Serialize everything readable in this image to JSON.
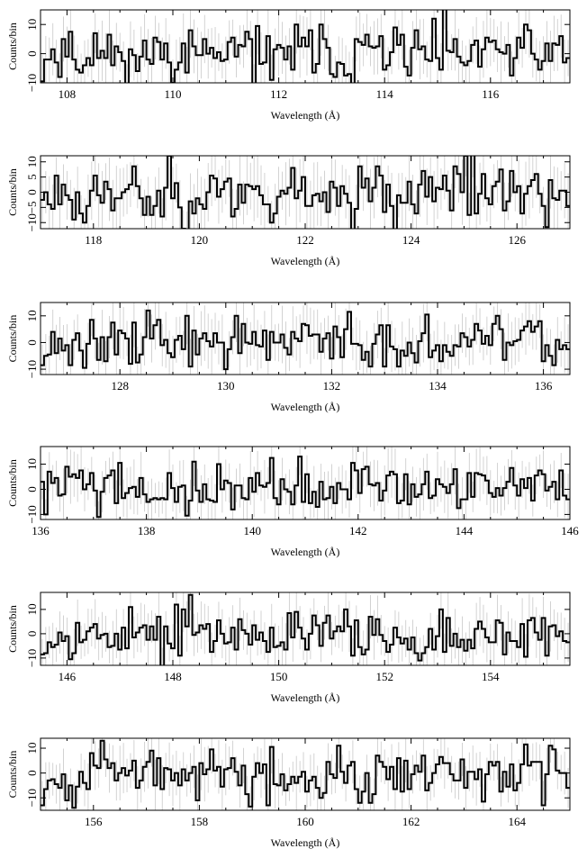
{
  "colors": {
    "spectrum": "#000000",
    "error_bars": "#c8c8c8",
    "axes": "#000000",
    "background": "#ffffff"
  },
  "chart_data": [
    {
      "type": "line",
      "style": "histogram-step",
      "xlabel": "Wavelength (Å)",
      "ylabel": "Counts/bin",
      "xlim": [
        107.5,
        117.5
      ],
      "ylim": [
        -10,
        15
      ],
      "xticks": [
        108,
        110,
        112,
        114,
        116
      ],
      "yticks": [
        -10,
        0,
        10
      ],
      "x_tick_labels": [
        "108",
        "110",
        "112",
        "114",
        "116"
      ],
      "y_tick_labels": [
        "−10",
        "0",
        "10"
      ],
      "grid": false,
      "seed": 11
    },
    {
      "type": "line",
      "style": "histogram-step",
      "xlabel": "Wavelength (Å)",
      "ylabel": "Counts/bin",
      "xlim": [
        117,
        127
      ],
      "ylim": [
        -12,
        12
      ],
      "xticks": [
        118,
        120,
        122,
        124,
        126
      ],
      "yticks": [
        -10,
        -5,
        0,
        5,
        10
      ],
      "x_tick_labels": [
        "118",
        "120",
        "122",
        "124",
        "126"
      ],
      "y_tick_labels": [
        "−10",
        "−5",
        "0",
        "5",
        "10"
      ],
      "grid": false,
      "seed": 23
    },
    {
      "type": "line",
      "style": "histogram-step",
      "xlabel": "Wavelength (Å)",
      "ylabel": "Counts/bin",
      "xlim": [
        126.5,
        136.5
      ],
      "ylim": [
        -12,
        15
      ],
      "xticks": [
        128,
        130,
        132,
        134,
        136
      ],
      "yticks": [
        -10,
        0,
        10
      ],
      "x_tick_labels": [
        "128",
        "130",
        "132",
        "134",
        "136"
      ],
      "y_tick_labels": [
        "−10",
        "0",
        "10"
      ],
      "grid": false,
      "seed": 37
    },
    {
      "type": "line",
      "style": "histogram-step",
      "xlabel": "Wavelength (Å)",
      "ylabel": "Counts/bin",
      "xlim": [
        136,
        146
      ],
      "ylim": [
        -12,
        17
      ],
      "xticks": [
        136,
        138,
        140,
        142,
        144,
        146
      ],
      "yticks": [
        -10,
        0,
        10
      ],
      "x_tick_labels": [
        "136",
        "138",
        "140",
        "142",
        "144",
        "146"
      ],
      "y_tick_labels": [
        "−10",
        "0",
        "10"
      ],
      "grid": false,
      "seed": 41
    },
    {
      "type": "line",
      "style": "histogram-step",
      "xlabel": "Wavelength (Å)",
      "ylabel": "Counts/bin",
      "xlim": [
        145.5,
        155.5
      ],
      "ylim": [
        -13,
        17
      ],
      "xticks": [
        146,
        148,
        150,
        152,
        154
      ],
      "yticks": [
        -10,
        0,
        10
      ],
      "x_tick_labels": [
        "146",
        "148",
        "150",
        "152",
        "154"
      ],
      "y_tick_labels": [
        "−10",
        "0",
        "10"
      ],
      "grid": false,
      "seed": 53
    },
    {
      "type": "line",
      "style": "histogram-step",
      "xlabel": "Wavelength (Å)",
      "ylabel": "Counts/bin",
      "xlim": [
        155,
        165
      ],
      "ylim": [
        -15,
        14
      ],
      "xticks": [
        156,
        158,
        160,
        162,
        164
      ],
      "yticks": [
        -10,
        0,
        10
      ],
      "x_tick_labels": [
        "156",
        "158",
        "160",
        "162",
        "164"
      ],
      "y_tick_labels": [
        "−10",
        "0",
        "10"
      ],
      "grid": false,
      "seed": 67
    }
  ]
}
